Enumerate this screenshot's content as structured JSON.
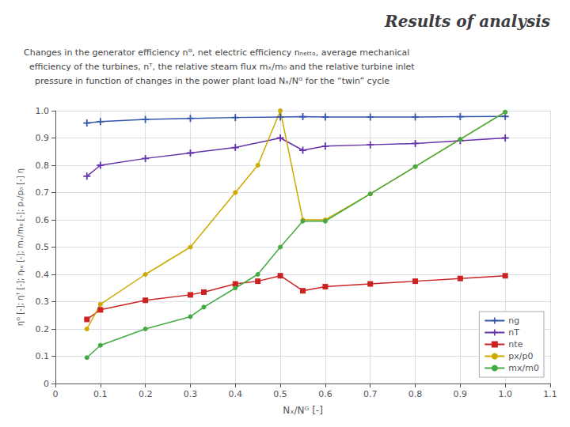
{
  "chart_data": {
    "type": "line",
    "title": "Results of analysis",
    "subtitle": "Changes in the generator efficiency nᴳ, net electric efficiency nₙₑₜₜₒ, average mechanical\n  efficiency of the turbines, nᵀ, the relative steam flux mₓ/m₀ and the relative turbine inlet\n    pressure in function of changes in the power plant load Nₓ/Nᴳ for the “twin” cycle",
    "x_label": "Nₓ/Nᴳ [-]",
    "y_label": "ηᴳ [-]; ηᵀ [-]; ηₜₑ [-]; mₓ/m₀ [-]; pₓ/p₀ [-] η",
    "xlim": [
      0,
      1.1
    ],
    "ylim": [
      0,
      1.0
    ],
    "xticks": [
      0,
      0.1,
      0.2,
      0.3,
      0.4,
      0.5,
      0.6,
      0.7,
      0.8,
      0.9,
      {
        "value": 1.0,
        "label": "1.0"
      },
      1.1
    ],
    "yticks": [
      0,
      0.1,
      0.2,
      0.3,
      0.4,
      0.5,
      0.6,
      0.7,
      0.8,
      0.9,
      {
        "value": 1.0,
        "label": "1.0"
      }
    ],
    "grid": true,
    "legend": "lower right",
    "series": [
      {
        "name": "ng",
        "color": "#3355aa",
        "marker": "plus",
        "x": [
          0.07,
          0.1,
          0.2,
          0.3,
          0.4,
          0.5,
          0.55,
          0.6,
          0.7,
          0.8,
          0.9,
          1.0
        ],
        "values": [
          0.955,
          0.96,
          0.968,
          0.972,
          0.975,
          0.977,
          0.978,
          0.977,
          0.977,
          0.977,
          0.978,
          0.979
        ]
      },
      {
        "name": "nT",
        "color": "#6633aa",
        "marker": "plus",
        "x": [
          0.07,
          0.1,
          0.2,
          0.3,
          0.4,
          0.5,
          0.55,
          0.6,
          0.7,
          0.8,
          0.9,
          1.0
        ],
        "values": [
          0.76,
          0.8,
          0.825,
          0.845,
          0.865,
          0.9,
          0.855,
          0.87,
          0.875,
          0.88,
          0.89,
          0.9
        ]
      },
      {
        "name": "nte",
        "color": "#cc2222",
        "marker": "square",
        "x": [
          0.07,
          0.1,
          0.2,
          0.3,
          0.33,
          0.4,
          0.45,
          0.5,
          0.55,
          0.6,
          0.7,
          0.8,
          0.9,
          1.0
        ],
        "values": [
          0.235,
          0.27,
          0.305,
          0.325,
          0.335,
          0.365,
          0.375,
          0.395,
          0.34,
          0.355,
          0.365,
          0.375,
          0.385,
          0.395
        ]
      },
      {
        "name": "px/p0",
        "color": "#ccaa00",
        "marker": "circle",
        "x": [
          0.07,
          0.1,
          0.2,
          0.3,
          0.4,
          0.45,
          0.5,
          0.55,
          0.6,
          0.7,
          0.8,
          0.9,
          1.0
        ],
        "values": [
          0.2,
          0.29,
          0.4,
          0.5,
          0.7,
          0.8,
          1.0,
          0.6,
          0.6,
          0.695,
          0.795,
          0.895,
          0.995
        ]
      },
      {
        "name": "mx/m0",
        "color": "#44aa44",
        "marker": "circle",
        "x": [
          0.07,
          0.1,
          0.2,
          0.3,
          0.33,
          0.4,
          0.45,
          0.5,
          0.55,
          0.6,
          0.7,
          0.8,
          0.9,
          1.0
        ],
        "values": [
          0.095,
          0.14,
          0.2,
          0.245,
          0.28,
          0.35,
          0.4,
          0.5,
          0.595,
          0.595,
          0.695,
          0.795,
          0.895,
          0.995
        ]
      }
    ]
  }
}
